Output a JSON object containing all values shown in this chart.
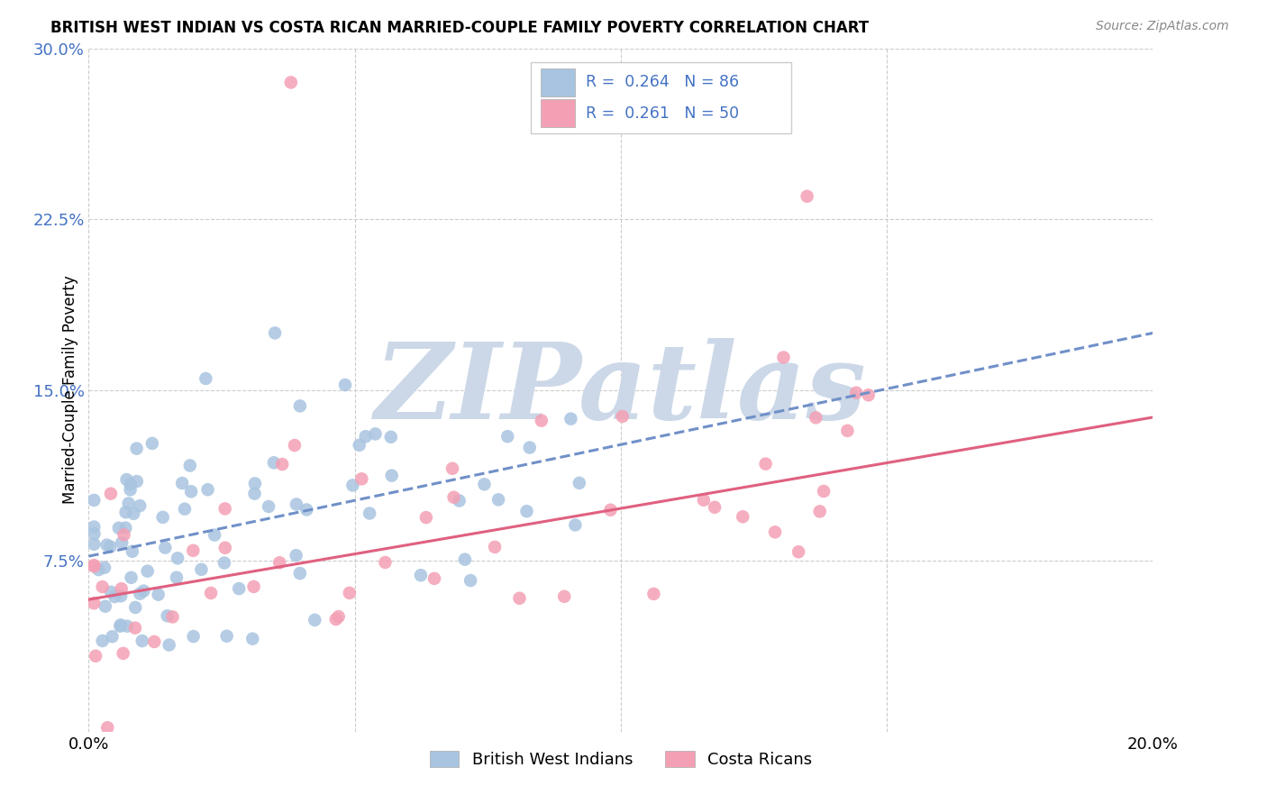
{
  "title": "BRITISH WEST INDIAN VS COSTA RICAN MARRIED-COUPLE FAMILY POVERTY CORRELATION CHART",
  "source": "Source: ZipAtlas.com",
  "ylabel": "Married-Couple Family Poverty",
  "xlim": [
    0.0,
    0.2
  ],
  "ylim": [
    0.0,
    0.3
  ],
  "xticks": [
    0.0,
    0.05,
    0.1,
    0.15,
    0.2
  ],
  "yticks": [
    0.0,
    0.075,
    0.15,
    0.225,
    0.3
  ],
  "xtick_show": [
    "0.0%",
    "",
    "",
    "",
    "20.0%"
  ],
  "ytick_show": [
    "",
    "7.5%",
    "15.0%",
    "22.5%",
    "30.0%"
  ],
  "bwi_R": 0.264,
  "bwi_N": 86,
  "cr_R": 0.261,
  "cr_N": 50,
  "bwi_color": "#a8c4e0",
  "cr_color": "#f4a0b4",
  "bwi_line_color": "#7090c8",
  "cr_line_color": "#e06080",
  "ytick_color": "#4472c4",
  "legend_text_color": "#4472c4",
  "watermark_text": "ZIPatlas",
  "watermark_color": "#ccd8e8",
  "background_color": "#ffffff",
  "grid_color": "#cccccc",
  "figwidth": 14.06,
  "figheight": 8.92,
  "dpi": 100,
  "bwi_line_start_y": 0.077,
  "bwi_line_end_y": 0.175,
  "cr_line_start_y": 0.058,
  "cr_line_end_y": 0.138
}
